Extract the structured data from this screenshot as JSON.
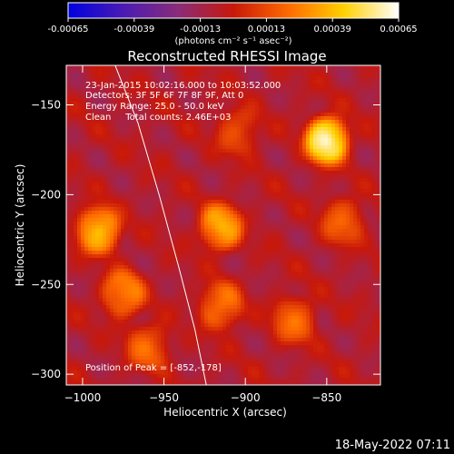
{
  "colorbar": {
    "ticks": [
      "-0.00065",
      "-0.00039",
      "-0.00013",
      "0.00013",
      "0.00039",
      "0.00065"
    ],
    "units": "(photons cm⁻² s⁻¹ asec⁻²)",
    "stops": [
      "#0000e0",
      "#4a1bb4",
      "#8a2c78",
      "#c8180a",
      "#ff6a00",
      "#ffd000",
      "#ffffff"
    ]
  },
  "chart_data": {
    "type": "heatmap",
    "title": "Reconstructed RHESSI Image",
    "xlabel": "Heliocentric X (arcsec)",
    "ylabel": "Heliocentric Y (arcsec)",
    "xlim": [
      -1010,
      -817
    ],
    "ylim": [
      -306,
      -128
    ],
    "xticks": [
      -1000,
      -950,
      -900,
      -850
    ],
    "yticks": [
      -150,
      -200,
      -250,
      -300
    ],
    "peak": {
      "x": -852,
      "y": -178
    },
    "limb_curve": [
      [
        -980,
        -128
      ],
      [
        -966,
        -160
      ],
      [
        -953,
        -200
      ],
      [
        -941,
        -240
      ],
      [
        -931,
        -275
      ],
      [
        -924,
        -306
      ]
    ],
    "sources": [
      {
        "x": -850,
        "y": -170,
        "intensity": 1.0
      },
      {
        "x": -990,
        "y": -220,
        "intensity": 0.7
      },
      {
        "x": -915,
        "y": -218,
        "intensity": 0.62
      },
      {
        "x": -975,
        "y": -255,
        "intensity": 0.5
      },
      {
        "x": -915,
        "y": -262,
        "intensity": 0.45
      },
      {
        "x": -870,
        "y": -270,
        "intensity": 0.4
      },
      {
        "x": -960,
        "y": -285,
        "intensity": 0.38
      },
      {
        "x": -840,
        "y": -215,
        "intensity": 0.36
      },
      {
        "x": -905,
        "y": -165,
        "intensity": 0.3
      }
    ]
  },
  "annotation": {
    "line1": "23-Jan-2015 10:02:16.000 to 10:03:52.000",
    "line2": "Detectors: 3F 5F 6F 7F 8F 9F, Att 0",
    "line3": "Energy Range: 25.0 - 50.0 keV",
    "line4": "Clean     Total counts: 2.46E+03",
    "peak_label": "Position of Peak = [-852,-178]"
  },
  "footer": {
    "timestamp": "18-May-2022 07:11"
  }
}
